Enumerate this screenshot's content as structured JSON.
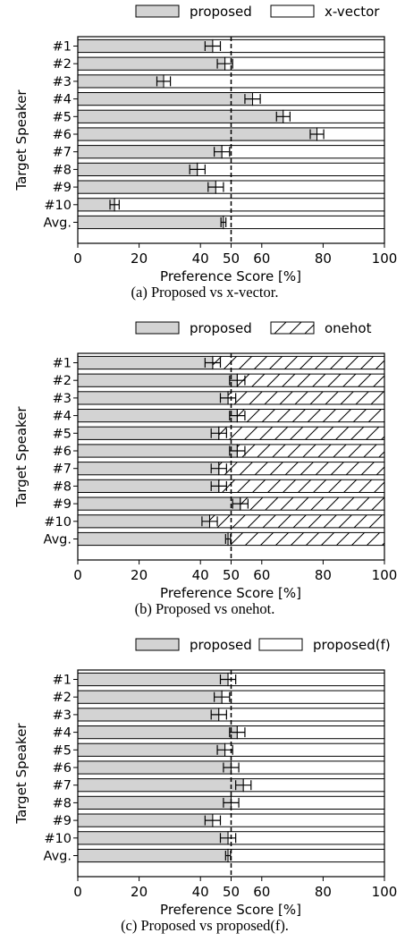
{
  "chart_data": [
    {
      "type": "bar",
      "orientation": "horizontal",
      "stacked": true,
      "caption": "(a) Proposed vs x-vector.",
      "xlabel": "Preference Score [%]",
      "ylabel": "Target Speaker",
      "xlim": [
        0,
        100
      ],
      "xticks": [
        "0",
        "20",
        "40",
        "50",
        "60",
        "80",
        "100"
      ],
      "reference_line": 50,
      "legend": [
        "proposed",
        "x-vector"
      ],
      "legend_position": "top",
      "grid": false,
      "colors": {
        "proposed": "#d3d3d3",
        "other": "#ffffff",
        "edge": "#000000"
      },
      "other_hatch": false,
      "categories": [
        "#1",
        "#2",
        "#3",
        "#4",
        "#5",
        "#6",
        "#7",
        "#8",
        "#9",
        "#10",
        "Avg."
      ],
      "values": [
        44,
        48,
        28,
        57,
        67,
        78,
        47,
        39,
        45,
        12,
        47.5
      ],
      "errors": [
        2.5,
        2.5,
        2.2,
        2.5,
        2.2,
        2.2,
        2.5,
        2.5,
        2.5,
        1.5,
        0.8
      ]
    },
    {
      "type": "bar",
      "orientation": "horizontal",
      "stacked": true,
      "caption": "(b) Proposed vs onehot.",
      "xlabel": "Preference Score [%]",
      "ylabel": "Target Speaker",
      "xlim": [
        0,
        100
      ],
      "xticks": [
        "0",
        "20",
        "40",
        "50",
        "60",
        "80",
        "100"
      ],
      "reference_line": 50,
      "legend": [
        "proposed",
        "onehot"
      ],
      "legend_position": "top",
      "grid": false,
      "colors": {
        "proposed": "#d3d3d3",
        "other": "#ffffff",
        "edge": "#000000"
      },
      "other_hatch": true,
      "categories": [
        "#1",
        "#2",
        "#3",
        "#4",
        "#5",
        "#6",
        "#7",
        "#8",
        "#9",
        "#10",
        "Avg."
      ],
      "values": [
        44,
        52,
        49,
        52,
        46,
        52,
        46,
        46,
        53,
        43,
        49
      ],
      "errors": [
        2.5,
        2.5,
        2.5,
        2.5,
        2.5,
        2.5,
        2.5,
        2.5,
        2.5,
        2.5,
        0.8
      ]
    },
    {
      "type": "bar",
      "orientation": "horizontal",
      "stacked": true,
      "caption": "(c) Proposed vs proposed(f).",
      "xlabel": "Preference Score [%]",
      "ylabel": "Target Speaker",
      "xlim": [
        0,
        100
      ],
      "xticks": [
        "0",
        "20",
        "40",
        "50",
        "60",
        "80",
        "100"
      ],
      "reference_line": 50,
      "legend": [
        "proposed",
        "proposed(f)"
      ],
      "legend_position": "top",
      "grid": false,
      "colors": {
        "proposed": "#d3d3d3",
        "other": "#ffffff",
        "edge": "#000000"
      },
      "other_hatch": false,
      "categories": [
        "#1",
        "#2",
        "#3",
        "#4",
        "#5",
        "#6",
        "#7",
        "#8",
        "#9",
        "#10",
        "Avg."
      ],
      "values": [
        49,
        47,
        46,
        52,
        48,
        50,
        54,
        50,
        44,
        49,
        49
      ],
      "errors": [
        2.5,
        2.5,
        2.5,
        2.5,
        2.5,
        2.5,
        2.5,
        2.5,
        2.5,
        2.5,
        0.8
      ]
    }
  ]
}
